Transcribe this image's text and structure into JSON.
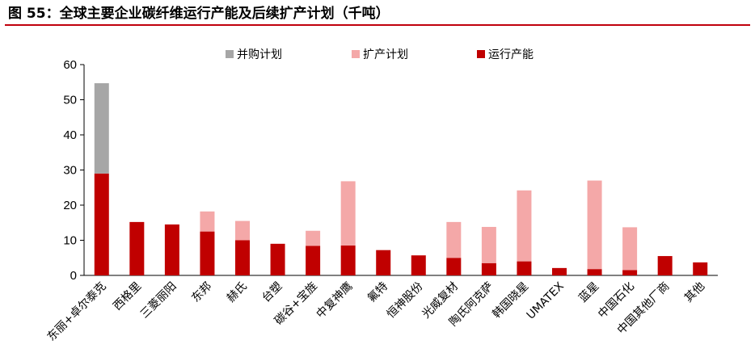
{
  "figure": {
    "title": "图 55：全球主要企业碳纤维运行产能及后续扩产计划（千吨）"
  },
  "colors": {
    "running": "#c00000",
    "expansion": "#f4a8a8",
    "merger": "#a6a6a6",
    "rule": "#c0000c"
  },
  "chart_data": {
    "type": "bar",
    "stacked": true,
    "title": "",
    "xlabel": "",
    "ylabel": "",
    "ylim": [
      0,
      60
    ],
    "yticks": [
      0,
      10,
      20,
      30,
      40,
      50,
      60
    ],
    "grid": false,
    "legend_position": "top",
    "categories": [
      "东丽+卓尔泰克",
      "西格里",
      "三菱丽阳",
      "东邦",
      "赫氏",
      "台塑",
      "碳谷+宝旌",
      "中复神鹰",
      "氟特",
      "恒神股份",
      "光威复材",
      "陶氏阿克萨",
      "韩国晓星",
      "UMATEX",
      "蓝星",
      "中国石化",
      "中国其他厂商",
      "其他"
    ],
    "series": [
      {
        "name": "运行产能",
        "color": "#c00000",
        "values": [
          29,
          15.2,
          14.5,
          12.5,
          10,
          9,
          8.4,
          8.5,
          7.2,
          5.7,
          5,
          3.5,
          4,
          2.1,
          1.8,
          1.5,
          5.5,
          3.7
        ]
      },
      {
        "name": "扩产计划",
        "color": "#f4a8a8",
        "values": [
          0,
          0,
          0,
          5.7,
          5.5,
          0,
          4.3,
          18.3,
          0,
          0,
          10.2,
          10.3,
          20.2,
          0,
          25.2,
          12.2,
          0,
          0
        ]
      },
      {
        "name": "并购计划",
        "color": "#a6a6a6",
        "values": [
          25.7,
          0,
          0,
          0,
          0,
          0,
          0,
          0,
          0,
          0,
          0,
          0,
          0,
          0,
          0,
          0,
          0,
          0
        ]
      }
    ],
    "legend_order": [
      "并购计划",
      "扩产计划",
      "运行产能"
    ]
  }
}
